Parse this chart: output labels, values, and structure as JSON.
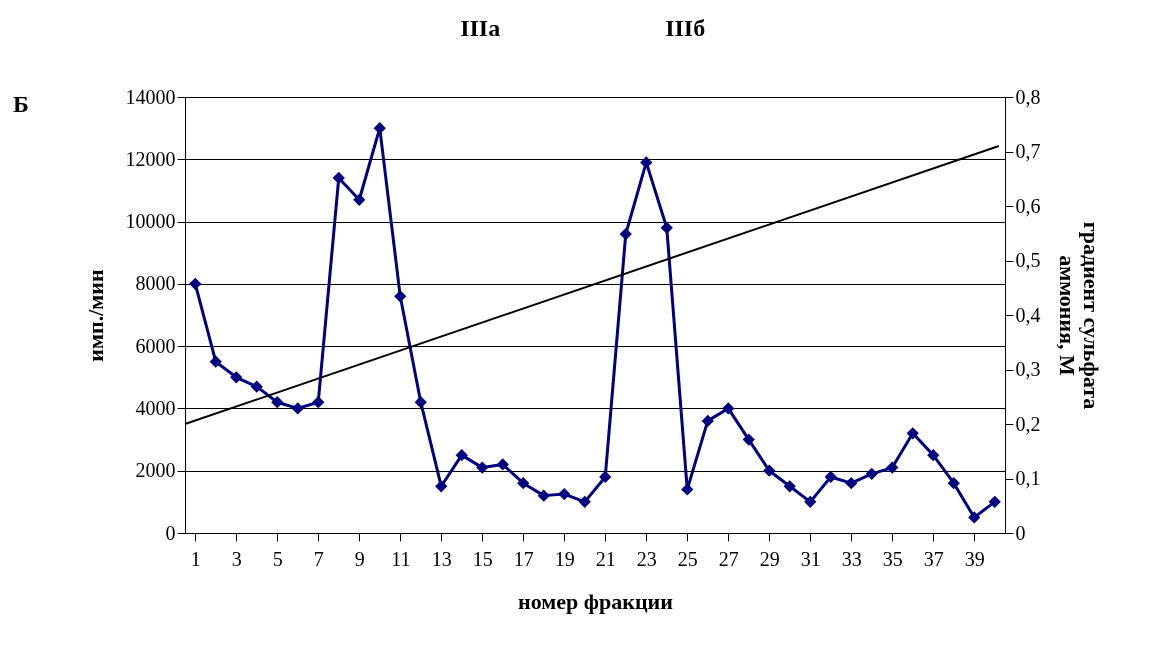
{
  "chart_data": {
    "type": "line",
    "ylabel": "имп./мин",
    "xlabel": "номер фракции",
    "y2label": "градиент сульфата\nаммония, М",
    "annotations": [
      "Б",
      "IIIa",
      "IIIб"
    ],
    "xlim": [
      0.5,
      40.5
    ],
    "xticks": [
      1,
      3,
      5,
      7,
      9,
      11,
      13,
      15,
      17,
      19,
      21,
      23,
      25,
      27,
      29,
      31,
      33,
      35,
      37,
      39
    ],
    "ylim": [
      0,
      14000
    ],
    "yticks": [
      0,
      2000,
      4000,
      6000,
      8000,
      10000,
      12000,
      14000
    ],
    "y2lim": [
      0,
      0.8
    ],
    "y2ticks": [
      0,
      {
        "value": 0.1,
        "label": "0,1"
      },
      {
        "value": 0.2,
        "label": "0,2"
      },
      {
        "value": 0.3,
        "label": "0,3"
      },
      {
        "value": 0.4,
        "label": "0,4"
      },
      {
        "value": 0.5,
        "label": "0,5"
      },
      {
        "value": 0.6,
        "label": "0,6"
      },
      {
        "value": 0.7,
        "label": "0,7"
      },
      {
        "value": 0.8,
        "label": "0,8"
      }
    ],
    "grid": "y",
    "series": [
      {
        "color": "#000080",
        "marker": "diamond",
        "line_style": "solid",
        "x": [
          1,
          2,
          3,
          4,
          5,
          6,
          7,
          8,
          9,
          10,
          11,
          12,
          13,
          14,
          15,
          16,
          17,
          18,
          19,
          20,
          21,
          22,
          23,
          24,
          25,
          26,
          27,
          28,
          29,
          30,
          31,
          32,
          33,
          34,
          35,
          36,
          37,
          38,
          39,
          40
        ],
        "values": [
          8000,
          5500,
          5000,
          4700,
          4200,
          4000,
          4200,
          11400,
          10700,
          13000,
          7600,
          4200,
          1500,
          2500,
          2100,
          2200,
          1600,
          1200,
          1250,
          1000,
          1800,
          9600,
          11900,
          9800,
          1400,
          3600,
          4000,
          3000,
          2000,
          1500,
          1000,
          1800,
          1600,
          1900,
          2100,
          3200,
          2500,
          1600,
          500,
          1000
        ]
      },
      {
        "color": "#000000",
        "marker": "none",
        "line_style": "solid",
        "axis": "y2",
        "x": [
          0.5,
          40.2
        ],
        "values": [
          0.2,
          0.71
        ]
      }
    ]
  }
}
